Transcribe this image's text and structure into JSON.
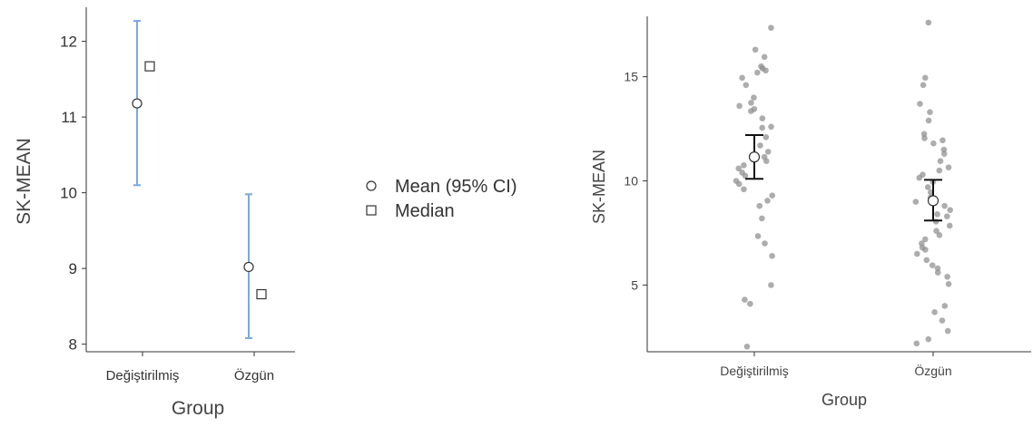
{
  "chart_data": [
    {
      "type": "scatter",
      "xlabel": "Group",
      "ylabel": "SK-MEAN",
      "categories": [
        "Değiştirilmiş",
        "Özgün"
      ],
      "ylim": [
        7.9,
        12.45
      ],
      "yticks": [
        8,
        9,
        10,
        11,
        12
      ],
      "series": [
        {
          "name": "Mean (95% CI)",
          "values": [
            11.18,
            9.02
          ],
          "ci_low": [
            10.1,
            8.08
          ],
          "ci_high": [
            12.27,
            9.98
          ],
          "color": "#79a9e0"
        },
        {
          "name": "Median",
          "values": [
            11.67,
            8.66
          ]
        }
      ],
      "legend": "right",
      "grid": false
    },
    {
      "type": "scatter",
      "xlabel": "Group",
      "ylabel": "SK-MEAN",
      "categories": [
        "Değiştirilmiş",
        "Özgün"
      ],
      "ylim": [
        1.8,
        17.9
      ],
      "yticks": [
        5,
        10,
        15
      ],
      "mean": [
        11.15,
        9.05
      ],
      "ci_low": [
        10.1,
        8.1
      ],
      "ci_high": [
        12.2,
        10.05
      ],
      "points": [
        [
          17.35,
          16.3,
          15.95,
          15.5,
          15.4,
          15.3,
          15.2,
          14.95,
          14.6,
          14.0,
          13.75,
          13.6,
          13.45,
          13.35,
          13.0,
          12.6,
          12.55,
          12.1,
          11.7,
          11.4,
          11.15,
          10.95,
          10.75,
          10.6,
          10.4,
          10.25,
          10.0,
          9.85,
          9.6,
          9.3,
          9.05,
          8.8,
          8.2,
          7.35,
          7.0,
          6.4,
          5.0,
          4.3,
          4.1,
          2.05
        ],
        [
          17.6,
          14.95,
          14.6,
          13.7,
          13.3,
          12.9,
          12.25,
          12.05,
          11.95,
          11.8,
          11.5,
          11.3,
          10.95,
          10.65,
          10.5,
          10.3,
          10.15,
          9.95,
          9.7,
          9.45,
          9.2,
          9.0,
          8.8,
          8.6,
          8.4,
          8.3,
          8.05,
          7.85,
          7.6,
          7.4,
          7.2,
          7.0,
          6.8,
          6.7,
          6.5,
          6.2,
          5.95,
          5.8,
          5.6,
          5.4,
          5.05,
          4.0,
          3.7,
          3.3,
          2.8,
          2.4,
          2.2
        ]
      ],
      "grid": false
    }
  ]
}
